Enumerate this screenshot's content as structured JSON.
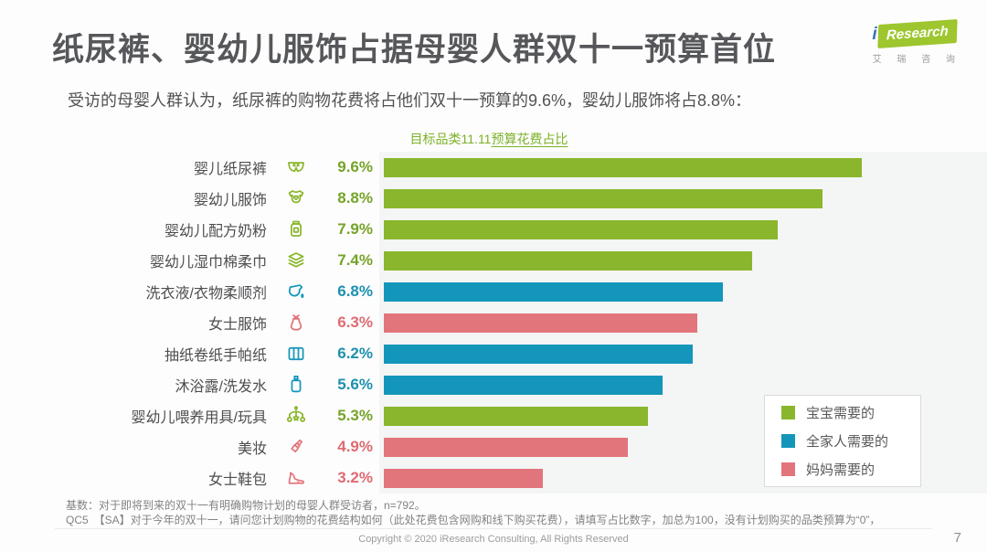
{
  "header": {
    "title": "纸尿裤、婴幼儿服饰占据母婴人群双十一预算首位",
    "logo": {
      "brand_i": "i",
      "brand_name": "Research",
      "brand_cn": "艾 瑞 咨 询"
    }
  },
  "subtitle": "受访的母婴人群认为，纸尿裤的购物花费将占他们双十一预算的9.6%，婴幼儿服饰将占8.8%：",
  "chart_data": {
    "type": "bar",
    "orientation": "horizontal",
    "title": "目标品类11.11预算花费占比",
    "title_part1": "目标品类11.11",
    "title_part2": "预算花费占比",
    "categories": [
      "婴儿纸尿裤",
      "婴幼儿服饰",
      "婴幼儿配方奶粉",
      "婴幼儿湿巾棉柔巾",
      "洗衣液/衣物柔顺剂",
      "女士服饰",
      "抽纸卷纸手帕纸",
      "沐浴露/洗发水",
      "婴幼儿喂养用具/玩具",
      "美妆",
      "女士鞋包"
    ],
    "values": [
      9.6,
      8.8,
      7.9,
      7.4,
      6.8,
      6.3,
      6.2,
      5.6,
      5.3,
      4.9,
      3.2
    ],
    "value_labels": [
      "9.6%",
      "8.8%",
      "7.9%",
      "7.4%",
      "6.8%",
      "6.3%",
      "6.2%",
      "5.6%",
      "5.3%",
      "4.9%",
      "3.2%"
    ],
    "series_by_row": [
      "baby",
      "baby",
      "baby",
      "baby",
      "family",
      "mom",
      "family",
      "family",
      "baby",
      "mom",
      "mom"
    ],
    "icons": [
      "diaper-icon",
      "onesie-icon",
      "milk-powder-jar-icon",
      "wipes-icon",
      "detergent-icon",
      "dress-icon",
      "tissue-icon",
      "shampoo-bottle-icon",
      "baby-mobile-toy-icon",
      "lipstick-icon",
      "high-heel-icon"
    ],
    "colors": {
      "baby": "#8ab62d",
      "family": "#1496ba",
      "mom": "#e2757c"
    },
    "value_colors": {
      "baby": "#76a328",
      "family": "#1e90ad",
      "mom": "#df6a72"
    },
    "xlim": [
      0,
      10.2
    ],
    "unit": "%",
    "grid": false,
    "legend_position": "bottom-right",
    "legend": [
      {
        "label": "宝宝需要的",
        "series": "baby"
      },
      {
        "label": "全家人需要的",
        "series": "family"
      },
      {
        "label": "妈妈需要的",
        "series": "mom"
      }
    ]
  },
  "footer": {
    "base_note": "基数：对于即将到来的双十一有明确购物计划的母婴人群受访者，n=792。",
    "question_note": "QC5　【SA】对于今年的双十一，请问您计划购物的花费结构如何（此处花费包含网购和线下购买花费），请填写占比数字，加总为100，没有计划购买的品类预算为“0”，",
    "copyright": "Copyright © 2020 iResearch Consulting, All Rights Reserved",
    "page_number": "7"
  }
}
